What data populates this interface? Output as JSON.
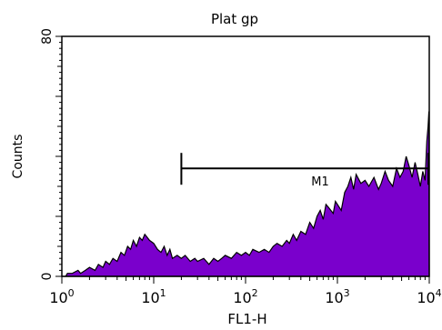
{
  "chart_data": {
    "type": "area",
    "title": "Plat gp",
    "xlabel": "FL1-H",
    "ylabel": "Counts",
    "x_scale": "log",
    "xlim": [
      1,
      10000
    ],
    "ylim": [
      0,
      80
    ],
    "x_ticks": [
      {
        "base": "10",
        "exp": "0",
        "value": 1
      },
      {
        "base": "10",
        "exp": "1",
        "value": 10
      },
      {
        "base": "10",
        "exp": "2",
        "value": 100
      },
      {
        "base": "10",
        "exp": "3",
        "value": 1000
      },
      {
        "base": "10",
        "exp": "4",
        "value": 10000
      }
    ],
    "y_ticks": [
      {
        "label": "0",
        "value": 0
      },
      {
        "label": "80",
        "value": 80
      }
    ],
    "grid": false,
    "fill_color": "#7a00cc",
    "outline_color": "#000000",
    "marker": {
      "label": "M1",
      "x_start": 20,
      "x_end": 10000,
      "y": 36
    },
    "series": [
      {
        "points": [
          [
            1.0,
            0
          ],
          [
            1.1,
            0
          ],
          [
            1.15,
            1
          ],
          [
            1.3,
            1
          ],
          [
            1.5,
            2
          ],
          [
            1.6,
            1
          ],
          [
            1.8,
            2
          ],
          [
            2.0,
            3
          ],
          [
            2.3,
            2
          ],
          [
            2.5,
            4
          ],
          [
            2.8,
            3
          ],
          [
            3.0,
            5
          ],
          [
            3.3,
            4
          ],
          [
            3.6,
            6
          ],
          [
            4.0,
            5
          ],
          [
            4.4,
            8
          ],
          [
            4.8,
            7
          ],
          [
            5.2,
            10
          ],
          [
            5.6,
            9
          ],
          [
            6.0,
            12
          ],
          [
            6.5,
            10
          ],
          [
            7.0,
            13
          ],
          [
            7.5,
            12
          ],
          [
            8.0,
            14
          ],
          [
            8.5,
            13
          ],
          [
            9.0,
            12
          ],
          [
            10,
            11
          ],
          [
            11,
            9
          ],
          [
            12,
            8
          ],
          [
            13,
            10
          ],
          [
            14,
            7
          ],
          [
            15,
            9
          ],
          [
            16,
            6
          ],
          [
            18,
            7
          ],
          [
            20,
            6
          ],
          [
            22,
            7
          ],
          [
            25,
            5
          ],
          [
            28,
            6
          ],
          [
            30,
            5
          ],
          [
            35,
            6
          ],
          [
            40,
            4
          ],
          [
            45,
            6
          ],
          [
            50,
            5
          ],
          [
            55,
            6
          ],
          [
            60,
            7
          ],
          [
            70,
            6
          ],
          [
            80,
            8
          ],
          [
            90,
            7
          ],
          [
            100,
            8
          ],
          [
            110,
            7
          ],
          [
            120,
            9
          ],
          [
            140,
            8
          ],
          [
            160,
            9
          ],
          [
            180,
            8
          ],
          [
            200,
            10
          ],
          [
            220,
            11
          ],
          [
            250,
            10
          ],
          [
            280,
            12
          ],
          [
            300,
            11
          ],
          [
            330,
            14
          ],
          [
            360,
            12
          ],
          [
            400,
            15
          ],
          [
            450,
            14
          ],
          [
            500,
            18
          ],
          [
            550,
            16
          ],
          [
            600,
            20
          ],
          [
            650,
            22
          ],
          [
            700,
            19
          ],
          [
            750,
            24
          ],
          [
            800,
            23
          ],
          [
            900,
            21
          ],
          [
            950,
            25
          ],
          [
            1000,
            24
          ],
          [
            1100,
            22
          ],
          [
            1200,
            28
          ],
          [
            1300,
            30
          ],
          [
            1400,
            33
          ],
          [
            1500,
            29
          ],
          [
            1600,
            34
          ],
          [
            1800,
            31
          ],
          [
            2000,
            32
          ],
          [
            2200,
            30
          ],
          [
            2500,
            33
          ],
          [
            2800,
            29
          ],
          [
            3000,
            31
          ],
          [
            3300,
            35
          ],
          [
            3600,
            32
          ],
          [
            4000,
            30
          ],
          [
            4400,
            36
          ],
          [
            4800,
            33
          ],
          [
            5200,
            35
          ],
          [
            5600,
            40
          ],
          [
            6000,
            37
          ],
          [
            6500,
            33
          ],
          [
            7000,
            38
          ],
          [
            7500,
            34
          ],
          [
            8000,
            30
          ],
          [
            8500,
            35
          ],
          [
            9000,
            32
          ],
          [
            9400,
            45
          ],
          [
            9700,
            50
          ],
          [
            9900,
            55
          ],
          [
            10000,
            0
          ]
        ]
      }
    ]
  }
}
